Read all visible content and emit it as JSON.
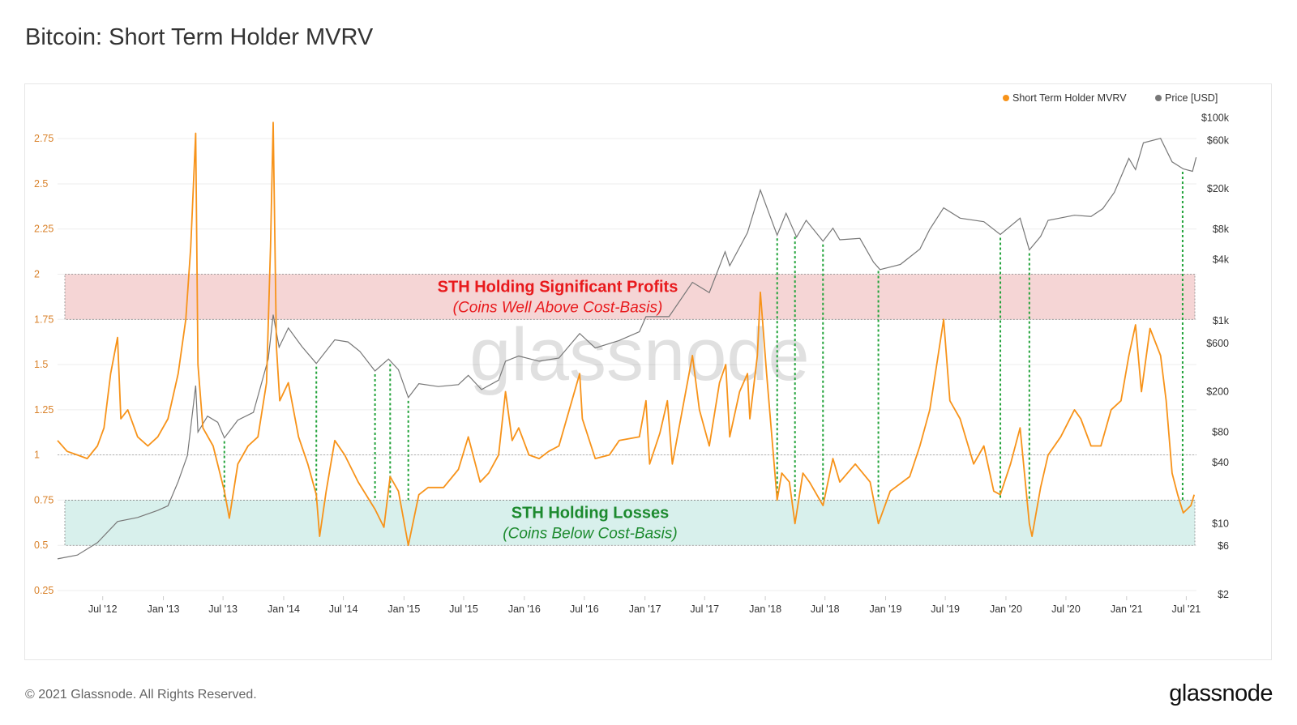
{
  "page": {
    "title": "Bitcoin: Short Term Holder MVRV",
    "copyright": "© 2021 Glassnode. All Rights Reserved.",
    "logo": "glassnode",
    "watermark": "glassnode"
  },
  "chart_data": {
    "type": "line",
    "title": "Bitcoin: Short Term Holder MVRV",
    "legend": [
      {
        "name": "Short Term Holder MVRV",
        "color": "#f7931a"
      },
      {
        "name": "Price [USD]",
        "color": "#777777"
      }
    ],
    "legend_position": "top-right",
    "x_ticks": [
      "Jul '12",
      "Jan '13",
      "Jul '13",
      "Jan '14",
      "Jul '14",
      "Jan '15",
      "Jul '15",
      "Jan '16",
      "Jul '16",
      "Jan '17",
      "Jul '17",
      "Jan '18",
      "Jul '18",
      "Jan '19",
      "Jul '19",
      "Jan '20",
      "Jul '20",
      "Jan '21",
      "Jul '21"
    ],
    "xlim": [
      "2012-02-15",
      "2021-08-01"
    ],
    "y_left": {
      "label": "",
      "ticks": [
        "0.25",
        "0.5",
        "0.75",
        "1",
        "1.25",
        "1.5",
        "1.75",
        "2",
        "2.25",
        "2.5",
        "2.75"
      ],
      "range": [
        0.25,
        2.8
      ],
      "color": "#d9822b"
    },
    "y_right": {
      "label": "",
      "scale": "log",
      "ticks": [
        {
          "label": "$2",
          "value": 2
        },
        {
          "label": "$6",
          "value": 6
        },
        {
          "label": "$10",
          "value": 10
        },
        {
          "label": "$40",
          "value": 40
        },
        {
          "label": "$80",
          "value": 80
        },
        {
          "label": "$200",
          "value": 200
        },
        {
          "label": "$600",
          "value": 600
        },
        {
          "label": "$1k",
          "value": 1000
        },
        {
          "label": "$4k",
          "value": 4000
        },
        {
          "label": "$8k",
          "value": 8000
        },
        {
          "label": "$20k",
          "value": 20000
        },
        {
          "label": "$60k",
          "value": 60000
        },
        {
          "label": "$100k",
          "value": 100000
        }
      ]
    },
    "reference_lines": [
      1.0,
      0.75,
      0.5,
      2.0,
      1.75
    ],
    "annotations": [
      {
        "title": "STH Holding Significant Profits",
        "subtitle": "(Coins Well Above Cost-Basis)",
        "band": [
          1.75,
          2.0
        ],
        "fill": "#f5d5d5",
        "color": "#e8191c"
      },
      {
        "title": "STH Holding Losses",
        "subtitle": "(Coins Below Cost-Basis)",
        "band": [
          0.5,
          0.75
        ],
        "fill": "#d8f0ec",
        "color": "#1c8a2e"
      }
    ],
    "capitulation_markers": [
      "2013-07-05",
      "2014-04-10",
      "2014-10-05",
      "2014-11-20",
      "2015-01-14",
      "2018-02-06",
      "2018-04-01",
      "2018-06-25",
      "2018-12-10",
      "2019-12-15",
      "2020-03-12",
      "2021-06-20"
    ],
    "series": [
      {
        "name": "Short Term Holder MVRV",
        "color": "#f7931a",
        "points": [
          [
            "2012-02-15",
            1.08
          ],
          [
            "2012-03-15",
            1.02
          ],
          [
            "2012-04-15",
            1.0
          ],
          [
            "2012-05-15",
            0.98
          ],
          [
            "2012-06-15",
            1.05
          ],
          [
            "2012-07-05",
            1.15
          ],
          [
            "2012-07-25",
            1.45
          ],
          [
            "2012-08-15",
            1.65
          ],
          [
            "2012-08-25",
            1.2
          ],
          [
            "2012-09-15",
            1.25
          ],
          [
            "2012-10-15",
            1.1
          ],
          [
            "2012-11-15",
            1.05
          ],
          [
            "2012-12-15",
            1.1
          ],
          [
            "2013-01-15",
            1.2
          ],
          [
            "2013-02-15",
            1.45
          ],
          [
            "2013-03-10",
            1.75
          ],
          [
            "2013-03-25",
            2.15
          ],
          [
            "2013-04-09",
            2.78
          ],
          [
            "2013-04-16",
            1.5
          ],
          [
            "2013-05-01",
            1.15
          ],
          [
            "2013-06-01",
            1.05
          ],
          [
            "2013-07-05",
            0.8
          ],
          [
            "2013-07-20",
            0.65
          ],
          [
            "2013-08-15",
            0.95
          ],
          [
            "2013-09-15",
            1.05
          ],
          [
            "2013-10-15",
            1.1
          ],
          [
            "2013-11-10",
            1.4
          ],
          [
            "2013-11-22",
            2.15
          ],
          [
            "2013-11-30",
            2.84
          ],
          [
            "2013-12-10",
            1.6
          ],
          [
            "2013-12-20",
            1.3
          ],
          [
            "2014-01-15",
            1.4
          ],
          [
            "2014-02-15",
            1.1
          ],
          [
            "2014-03-15",
            0.95
          ],
          [
            "2014-04-10",
            0.78
          ],
          [
            "2014-04-20",
            0.55
          ],
          [
            "2014-05-10",
            0.8
          ],
          [
            "2014-06-05",
            1.08
          ],
          [
            "2014-07-05",
            1.0
          ],
          [
            "2014-08-15",
            0.85
          ],
          [
            "2014-10-05",
            0.7
          ],
          [
            "2014-11-01",
            0.6
          ],
          [
            "2014-11-20",
            0.88
          ],
          [
            "2014-12-15",
            0.8
          ],
          [
            "2015-01-14",
            0.5
          ],
          [
            "2015-02-15",
            0.78
          ],
          [
            "2015-03-15",
            0.82
          ],
          [
            "2015-05-01",
            0.82
          ],
          [
            "2015-06-15",
            0.92
          ],
          [
            "2015-07-15",
            1.1
          ],
          [
            "2015-08-20",
            0.85
          ],
          [
            "2015-09-15",
            0.9
          ],
          [
            "2015-10-15",
            1.0
          ],
          [
            "2015-11-05",
            1.35
          ],
          [
            "2015-11-25",
            1.08
          ],
          [
            "2015-12-15",
            1.15
          ],
          [
            "2016-01-15",
            1.0
          ],
          [
            "2016-02-15",
            0.98
          ],
          [
            "2016-03-15",
            1.02
          ],
          [
            "2016-04-15",
            1.05
          ],
          [
            "2016-06-17",
            1.45
          ],
          [
            "2016-06-25",
            1.2
          ],
          [
            "2016-08-03",
            0.98
          ],
          [
            "2016-09-15",
            1.0
          ],
          [
            "2016-10-15",
            1.08
          ],
          [
            "2016-12-15",
            1.1
          ],
          [
            "2017-01-04",
            1.3
          ],
          [
            "2017-01-15",
            0.95
          ],
          [
            "2017-02-15",
            1.12
          ],
          [
            "2017-03-10",
            1.3
          ],
          [
            "2017-03-25",
            0.95
          ],
          [
            "2017-05-25",
            1.55
          ],
          [
            "2017-06-15",
            1.25
          ],
          [
            "2017-07-15",
            1.05
          ],
          [
            "2017-08-15",
            1.4
          ],
          [
            "2017-09-03",
            1.5
          ],
          [
            "2017-09-15",
            1.1
          ],
          [
            "2017-10-15",
            1.35
          ],
          [
            "2017-11-08",
            1.45
          ],
          [
            "2017-11-15",
            1.2
          ],
          [
            "2017-12-08",
            1.55
          ],
          [
            "2017-12-17",
            1.9
          ],
          [
            "2018-01-05",
            1.45
          ],
          [
            "2018-02-06",
            0.75
          ],
          [
            "2018-02-20",
            0.9
          ],
          [
            "2018-03-15",
            0.85
          ],
          [
            "2018-04-01",
            0.62
          ],
          [
            "2018-04-25",
            0.9
          ],
          [
            "2018-05-15",
            0.85
          ],
          [
            "2018-06-25",
            0.72
          ],
          [
            "2018-07-25",
            0.98
          ],
          [
            "2018-08-15",
            0.85
          ],
          [
            "2018-10-01",
            0.95
          ],
          [
            "2018-11-15",
            0.85
          ],
          [
            "2018-12-10",
            0.62
          ],
          [
            "2019-01-15",
            0.8
          ],
          [
            "2019-03-15",
            0.88
          ],
          [
            "2019-04-15",
            1.05
          ],
          [
            "2019-05-15",
            1.25
          ],
          [
            "2019-06-26",
            1.75
          ],
          [
            "2019-07-15",
            1.3
          ],
          [
            "2019-08-15",
            1.2
          ],
          [
            "2019-09-25",
            0.95
          ],
          [
            "2019-10-26",
            1.05
          ],
          [
            "2019-11-25",
            0.8
          ],
          [
            "2019-12-15",
            0.78
          ],
          [
            "2020-01-15",
            0.95
          ],
          [
            "2020-02-13",
            1.15
          ],
          [
            "2020-03-12",
            0.62
          ],
          [
            "2020-03-20",
            0.55
          ],
          [
            "2020-04-15",
            0.82
          ],
          [
            "2020-05-08",
            1.0
          ],
          [
            "2020-06-15",
            1.1
          ],
          [
            "2020-07-27",
            1.25
          ],
          [
            "2020-08-15",
            1.2
          ],
          [
            "2020-09-15",
            1.05
          ],
          [
            "2020-10-15",
            1.05
          ],
          [
            "2020-11-15",
            1.25
          ],
          [
            "2020-12-15",
            1.3
          ],
          [
            "2021-01-08",
            1.55
          ],
          [
            "2021-01-28",
            1.72
          ],
          [
            "2021-02-15",
            1.35
          ],
          [
            "2021-03-13",
            1.7
          ],
          [
            "2021-04-14",
            1.55
          ],
          [
            "2021-05-01",
            1.3
          ],
          [
            "2021-05-19",
            0.9
          ],
          [
            "2021-06-05",
            0.78
          ],
          [
            "2021-06-22",
            0.68
          ],
          [
            "2021-07-15",
            0.72
          ],
          [
            "2021-07-25",
            0.78
          ]
        ]
      },
      {
        "name": "Price [USD]",
        "color": "#777777",
        "points": [
          [
            "2012-02-15",
            4.5
          ],
          [
            "2012-04-15",
            4.9
          ],
          [
            "2012-06-15",
            6.5
          ],
          [
            "2012-08-15",
            10.5
          ],
          [
            "2012-10-15",
            11.5
          ],
          [
            "2012-12-15",
            13.5
          ],
          [
            "2013-01-15",
            15
          ],
          [
            "2013-02-15",
            26
          ],
          [
            "2013-03-15",
            47
          ],
          [
            "2013-04-09",
            230
          ],
          [
            "2013-04-16",
            80
          ],
          [
            "2013-05-15",
            115
          ],
          [
            "2013-06-15",
            100
          ],
          [
            "2013-07-05",
            70
          ],
          [
            "2013-08-15",
            105
          ],
          [
            "2013-10-01",
            125
          ],
          [
            "2013-11-15",
            420
          ],
          [
            "2013-11-30",
            1150
          ],
          [
            "2013-12-18",
            550
          ],
          [
            "2014-01-15",
            850
          ],
          [
            "2014-02-25",
            560
          ],
          [
            "2014-04-10",
            380
          ],
          [
            "2014-06-05",
            650
          ],
          [
            "2014-07-15",
            620
          ],
          [
            "2014-08-20",
            500
          ],
          [
            "2014-10-05",
            320
          ],
          [
            "2014-11-15",
            420
          ],
          [
            "2014-12-15",
            330
          ],
          [
            "2015-01-14",
            175
          ],
          [
            "2015-02-15",
            240
          ],
          [
            "2015-04-15",
            225
          ],
          [
            "2015-06-15",
            235
          ],
          [
            "2015-07-15",
            290
          ],
          [
            "2015-08-24",
            210
          ],
          [
            "2015-10-15",
            260
          ],
          [
            "2015-11-05",
            400
          ],
          [
            "2015-12-15",
            450
          ],
          [
            "2016-02-15",
            400
          ],
          [
            "2016-04-15",
            430
          ],
          [
            "2016-06-17",
            750
          ],
          [
            "2016-08-03",
            540
          ],
          [
            "2016-10-15",
            640
          ],
          [
            "2016-12-15",
            780
          ],
          [
            "2017-01-04",
            1100
          ],
          [
            "2017-03-15",
            1100
          ],
          [
            "2017-05-25",
            2400
          ],
          [
            "2017-07-15",
            1900
          ],
          [
            "2017-09-01",
            4800
          ],
          [
            "2017-09-15",
            3500
          ],
          [
            "2017-11-08",
            7400
          ],
          [
            "2017-12-17",
            19500
          ],
          [
            "2018-02-06",
            7000
          ],
          [
            "2018-03-05",
            11500
          ],
          [
            "2018-04-06",
            6700
          ],
          [
            "2018-05-05",
            9800
          ],
          [
            "2018-06-25",
            6100
          ],
          [
            "2018-07-25",
            8200
          ],
          [
            "2018-08-15",
            6300
          ],
          [
            "2018-10-15",
            6500
          ],
          [
            "2018-11-25",
            3800
          ],
          [
            "2018-12-15",
            3200
          ],
          [
            "2019-02-15",
            3600
          ],
          [
            "2019-04-15",
            5100
          ],
          [
            "2019-05-15",
            8000
          ],
          [
            "2019-06-26",
            13000
          ],
          [
            "2019-08-15",
            10300
          ],
          [
            "2019-10-26",
            9500
          ],
          [
            "2019-12-15",
            7100
          ],
          [
            "2020-02-13",
            10300
          ],
          [
            "2020-03-12",
            5000
          ],
          [
            "2020-04-15",
            6800
          ],
          [
            "2020-05-08",
            9800
          ],
          [
            "2020-07-27",
            11000
          ],
          [
            "2020-09-15",
            10700
          ],
          [
            "2020-10-21",
            12800
          ],
          [
            "2020-11-25",
            18500
          ],
          [
            "2021-01-08",
            40000
          ],
          [
            "2021-01-28",
            31000
          ],
          [
            "2021-02-21",
            57000
          ],
          [
            "2021-04-14",
            63000
          ],
          [
            "2021-05-19",
            37000
          ],
          [
            "2021-06-22",
            31500
          ],
          [
            "2021-07-20",
            29800
          ],
          [
            "2021-07-31",
            41000
          ]
        ]
      }
    ]
  }
}
